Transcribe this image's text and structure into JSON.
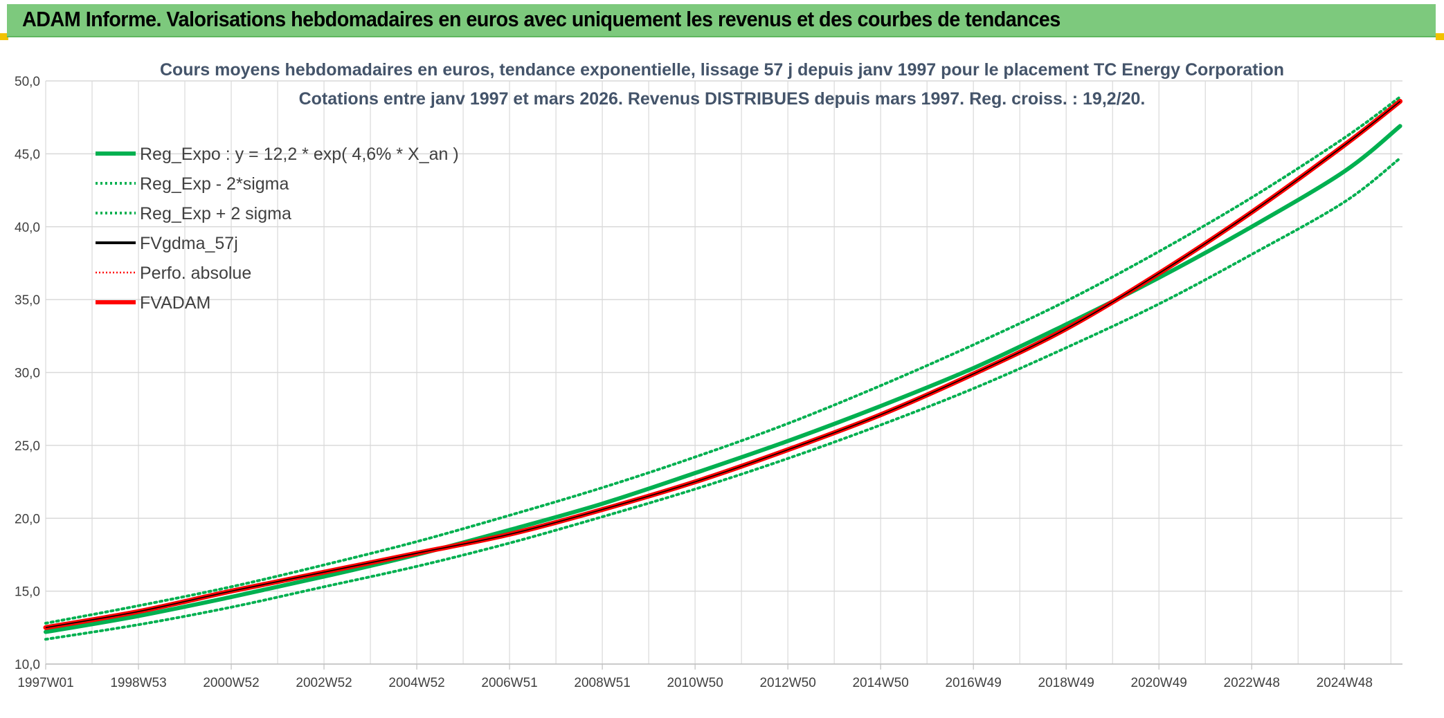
{
  "banner": {
    "title": "ADAM Informe. Valorisations hebdomadaires en euros avec uniquement les revenus et des courbes de tendances"
  },
  "colors": {
    "banner_bg": "#7dc97d",
    "green": "#00b050",
    "red": "#ff0000",
    "black": "#000000",
    "grid": "#d9d9d9",
    "title_text": "#44546a"
  },
  "chart_data": {
    "type": "line",
    "title_lines": [
      "Cours moyens hebdomadaires en euros, tendance exponentielle, lissage 57 j depuis janv 1997 pour le placement TC Energy Corporation",
      "Cotations entre janv 1997 et mars 2026. Revenus DISTRIBUES depuis mars 1997. Reg. croiss. : 19,2/20."
    ],
    "xlabel": "",
    "ylabel": "",
    "ylim": [
      10,
      50
    ],
    "xlim": [
      1997.0,
      2026.25
    ],
    "grid": true,
    "legend_position": "top-left",
    "y_ticks": [
      "10,0",
      "15,0",
      "20,0",
      "25,0",
      "30,0",
      "35,0",
      "40,0",
      "45,0",
      "50,0"
    ],
    "x_ticks": [
      {
        "label": "1997W01",
        "x": 1997.0
      },
      {
        "label": "1998W53",
        "x": 1999.0
      },
      {
        "label": "2000W52",
        "x": 2001.0
      },
      {
        "label": "2002W52",
        "x": 2003.0
      },
      {
        "label": "2004W52",
        "x": 2005.0
      },
      {
        "label": "2006W51",
        "x": 2007.0
      },
      {
        "label": "2008W51",
        "x": 2009.0
      },
      {
        "label": "2010W50",
        "x": 2011.0
      },
      {
        "label": "2012W50",
        "x": 2013.0
      },
      {
        "label": "2014W50",
        "x": 2015.0
      },
      {
        "label": "2016W49",
        "x": 2017.0
      },
      {
        "label": "2018W49",
        "x": 2019.0
      },
      {
        "label": "2020W49",
        "x": 2021.0
      },
      {
        "label": "2022W48",
        "x": 2023.0
      },
      {
        "label": "2024W48",
        "x": 2025.0
      }
    ],
    "series": [
      {
        "name": "Reg_Expo : y = 12,2 * exp( 4,6% *  X_an )",
        "color": "#00b050",
        "style": "solid",
        "width": "thick",
        "x": [
          1997.0,
          1999.0,
          2001.0,
          2003.0,
          2005.0,
          2007.0,
          2009.0,
          2011.0,
          2013.0,
          2015.0,
          2017.0,
          2019.0,
          2021.0,
          2023.0,
          2025.0,
          2026.2
        ],
        "values": [
          12.2,
          13.3,
          14.6,
          16.0,
          17.5,
          19.2,
          21.0,
          23.1,
          25.3,
          27.7,
          30.3,
          33.3,
          36.5,
          40.0,
          43.8,
          46.9
        ]
      },
      {
        "name": "Reg_Exp - 2*sigma",
        "color": "#00b050",
        "style": "dotted",
        "width": "medium",
        "x": [
          1997.0,
          1999.0,
          2001.0,
          2003.0,
          2005.0,
          2007.0,
          2009.0,
          2011.0,
          2013.0,
          2015.0,
          2017.0,
          2019.0,
          2021.0,
          2023.0,
          2025.0,
          2026.2
        ],
        "values": [
          11.7,
          12.7,
          13.9,
          15.3,
          16.7,
          18.3,
          20.1,
          22.0,
          24.1,
          26.4,
          28.9,
          31.7,
          34.7,
          38.1,
          41.7,
          44.7
        ]
      },
      {
        "name": "Reg_Exp + 2 sigma",
        "color": "#00b050",
        "style": "dotted",
        "width": "medium",
        "x": [
          1997.0,
          1999.0,
          2001.0,
          2003.0,
          2005.0,
          2007.0,
          2009.0,
          2011.0,
          2013.0,
          2015.0,
          2017.0,
          2019.0,
          2021.0,
          2023.0,
          2025.0,
          2026.2
        ],
        "values": [
          12.8,
          14.0,
          15.3,
          16.8,
          18.4,
          20.2,
          22.1,
          24.2,
          26.5,
          29.1,
          31.9,
          34.9,
          38.3,
          42.0,
          46.1,
          48.9
        ]
      },
      {
        "name": "FVgdma_57j",
        "color": "#000000",
        "style": "solid",
        "width": "medium",
        "x": [
          1997.0,
          1999.0,
          2001.0,
          2003.0,
          2005.0,
          2007.0,
          2009.0,
          2011.0,
          2013.0,
          2015.0,
          2017.0,
          2019.0,
          2021.0,
          2023.0,
          2025.0,
          2026.2
        ],
        "values": [
          12.5,
          13.6,
          15.0,
          16.3,
          17.6,
          18.9,
          20.6,
          22.5,
          24.7,
          27.1,
          29.9,
          33.0,
          36.8,
          41.0,
          45.6,
          48.6
        ]
      },
      {
        "name": "Perfo. absolue",
        "color": "#ff0000",
        "style": "dotted",
        "width": "thin",
        "x": [
          1997.0,
          1999.0,
          2001.0,
          2003.0,
          2005.0,
          2007.0,
          2009.0,
          2011.0,
          2013.0,
          2015.0,
          2017.0,
          2019.0,
          2021.0,
          2023.0,
          2025.0,
          2026.2
        ],
        "values": [
          12.5,
          13.6,
          15.0,
          16.3,
          17.6,
          18.9,
          20.6,
          22.5,
          24.7,
          27.1,
          29.9,
          33.0,
          36.8,
          41.0,
          45.6,
          48.6
        ]
      },
      {
        "name": "FVADAM",
        "color": "#ff0000",
        "style": "solid",
        "width": "thick",
        "x": [
          1997.0,
          1999.0,
          2001.0,
          2003.0,
          2005.0,
          2007.0,
          2009.0,
          2011.0,
          2013.0,
          2015.0,
          2017.0,
          2019.0,
          2021.0,
          2023.0,
          2025.0,
          2026.2
        ],
        "values": [
          12.5,
          13.6,
          15.0,
          16.3,
          17.6,
          18.9,
          20.6,
          22.5,
          24.7,
          27.1,
          29.9,
          33.0,
          36.8,
          41.0,
          45.6,
          48.6
        ]
      }
    ]
  }
}
